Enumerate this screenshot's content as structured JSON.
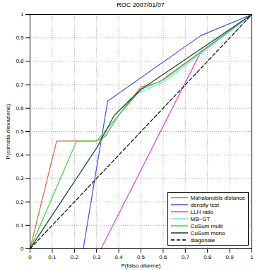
{
  "chart_data": {
    "type": "line",
    "title": "ROC 2007/01/07",
    "x_label": "P(falso allarme)",
    "y_label": "P(corretta rilevazione)",
    "xlim": [
      0,
      1
    ],
    "ylim": [
      0,
      1
    ],
    "xticks": [
      0,
      0.1,
      0.2,
      0.3,
      0.4,
      0.5,
      0.6,
      0.7,
      0.8,
      0.9,
      1
    ],
    "yticks": [
      0,
      0.1,
      0.2,
      0.3,
      0.4,
      0.5,
      0.6,
      0.7,
      0.8,
      0.9,
      1
    ],
    "grid": true,
    "legend": "lower right",
    "series": [
      {
        "name": "Mahalanobis distance",
        "color": "#e0603a",
        "line_style": "solid",
        "x": [
          0,
          0.12,
          0.3,
          0.34,
          0.4,
          0.5,
          0.58,
          1
        ],
        "values": [
          0,
          0.46,
          0.46,
          0.48,
          0.57,
          0.69,
          0.71,
          1
        ]
      },
      {
        "name": "density test",
        "color": "#4a4ae0",
        "line_style": "solid",
        "x": [
          0,
          0.24,
          0.35,
          0.77,
          1
        ],
        "values": [
          0,
          0,
          0.63,
          0.91,
          1
        ]
      },
      {
        "name": "LLH ratio",
        "color": "#e040e0",
        "line_style": "solid",
        "x": [
          0,
          0.32,
          0.77,
          1
        ],
        "values": [
          0,
          0,
          0.84,
          1
        ]
      },
      {
        "name": "MB−GT",
        "color": "#60e8e8",
        "line_style": "solid",
        "x": [
          0,
          0.3,
          0.35,
          0.4,
          0.45,
          0.5,
          0.6,
          1
        ],
        "values": [
          0,
          0.43,
          0.5,
          0.57,
          0.64,
          0.67,
          0.71,
          1
        ]
      },
      {
        "name": "CuSum multi",
        "color": "#40d040",
        "line_style": "solid",
        "x": [
          0,
          0.21,
          0.3,
          0.4,
          0.5,
          0.6,
          1
        ],
        "values": [
          0,
          0.46,
          0.46,
          0.57,
          0.68,
          0.72,
          1
        ]
      },
      {
        "name": "CuSum mono",
        "color": "#104040",
        "line_style": "solid",
        "x": [
          0,
          0.3,
          0.38,
          0.5,
          1
        ],
        "values": [
          0,
          0.43,
          0.57,
          0.68,
          1
        ]
      },
      {
        "name": "diagonale",
        "color": "#000000",
        "line_style": "dashed",
        "x": [
          0,
          1
        ],
        "values": [
          0,
          1
        ]
      }
    ]
  }
}
